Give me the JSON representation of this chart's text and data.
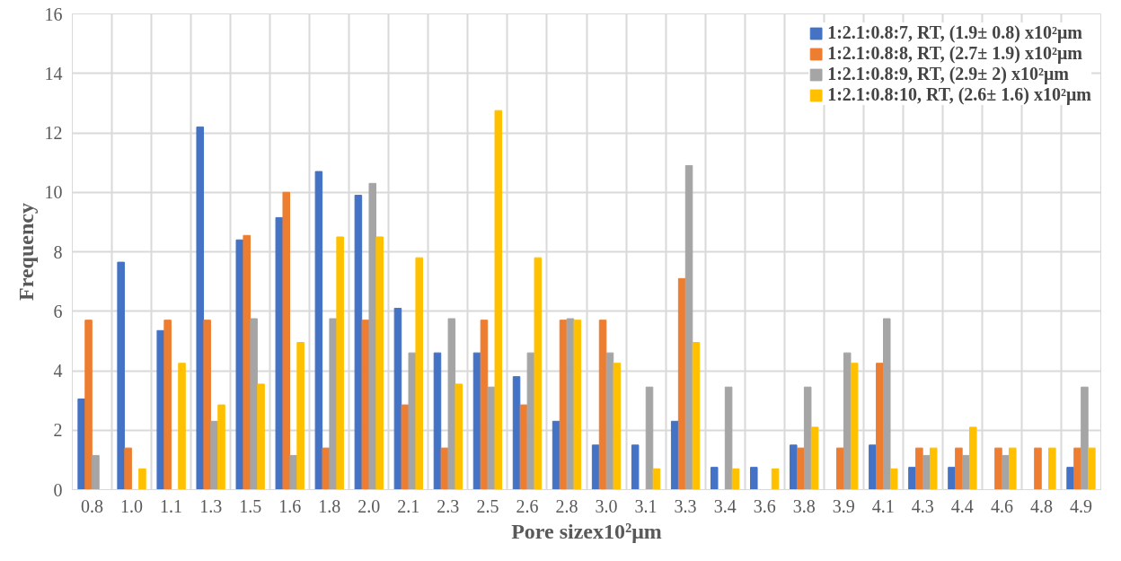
{
  "chart_data": {
    "type": "bar",
    "xlabel": "Pore sizex10²μm",
    "ylabel": "Frequency",
    "categories": [
      "0.8",
      "1.0",
      "1.1",
      "1.3",
      "1.5",
      "1.6",
      "1.8",
      "2.0",
      "2.1",
      "2.3",
      "2.5",
      "2.6",
      "2.8",
      "3.0",
      "3.1",
      "3.3",
      "3.4",
      "3.6",
      "3.8",
      "3.9",
      "4.1",
      "4.3",
      "4.4",
      "4.6",
      "4.8",
      "4.9"
    ],
    "series": [
      {
        "name": "1:2.1:0.8:7, RT, (1.9± 0.8) x10²μm",
        "color": "#4472c4",
        "values": [
          3.05,
          7.65,
          5.35,
          12.2,
          8.4,
          9.15,
          10.7,
          9.9,
          6.1,
          4.6,
          4.6,
          3.8,
          2.3,
          1.5,
          1.5,
          2.3,
          0.75,
          0.75,
          1.5,
          0,
          1.5,
          0.75,
          0.75,
          0,
          0,
          0.75
        ]
      },
      {
        "name": "1:2.1:0.8:8, RT, (2.7± 1.9) x10²μm",
        "color": "#ed7d31",
        "values": [
          5.7,
          1.4,
          5.7,
          5.7,
          8.55,
          10,
          1.4,
          5.7,
          2.85,
          1.4,
          5.7,
          2.85,
          5.7,
          5.7,
          0,
          7.1,
          0,
          0,
          1.4,
          1.4,
          4.25,
          1.4,
          1.4,
          1.4,
          1.4,
          1.4
        ]
      },
      {
        "name": "1:2.1:0.8:9, RT, (2.9± 2) x10²μm",
        "color": "#a5a5a5",
        "values": [
          1.15,
          0,
          0,
          2.3,
          5.75,
          1.15,
          5.75,
          10.3,
          4.6,
          5.75,
          3.45,
          4.6,
          5.75,
          4.6,
          3.45,
          10.9,
          3.45,
          0,
          3.45,
          4.6,
          5.75,
          1.15,
          1.15,
          1.15,
          0,
          3.45
        ]
      },
      {
        "name": "1:2.1:0.8:10, RT, (2.6± 1.6) x10²μm",
        "color": "#ffc000",
        "values": [
          0,
          0.7,
          4.25,
          2.85,
          3.55,
          4.95,
          8.5,
          8.5,
          7.8,
          3.55,
          12.75,
          7.8,
          5.7,
          4.25,
          0.7,
          4.95,
          0.7,
          0.7,
          2.1,
          4.25,
          0.7,
          1.4,
          2.1,
          1.4,
          1.4,
          1.4
        ]
      }
    ],
    "ylim": [
      0,
      16
    ],
    "yticks": [
      0,
      2,
      4,
      6,
      8,
      10,
      12,
      14,
      16
    ],
    "grid": true,
    "legend": "top right"
  }
}
